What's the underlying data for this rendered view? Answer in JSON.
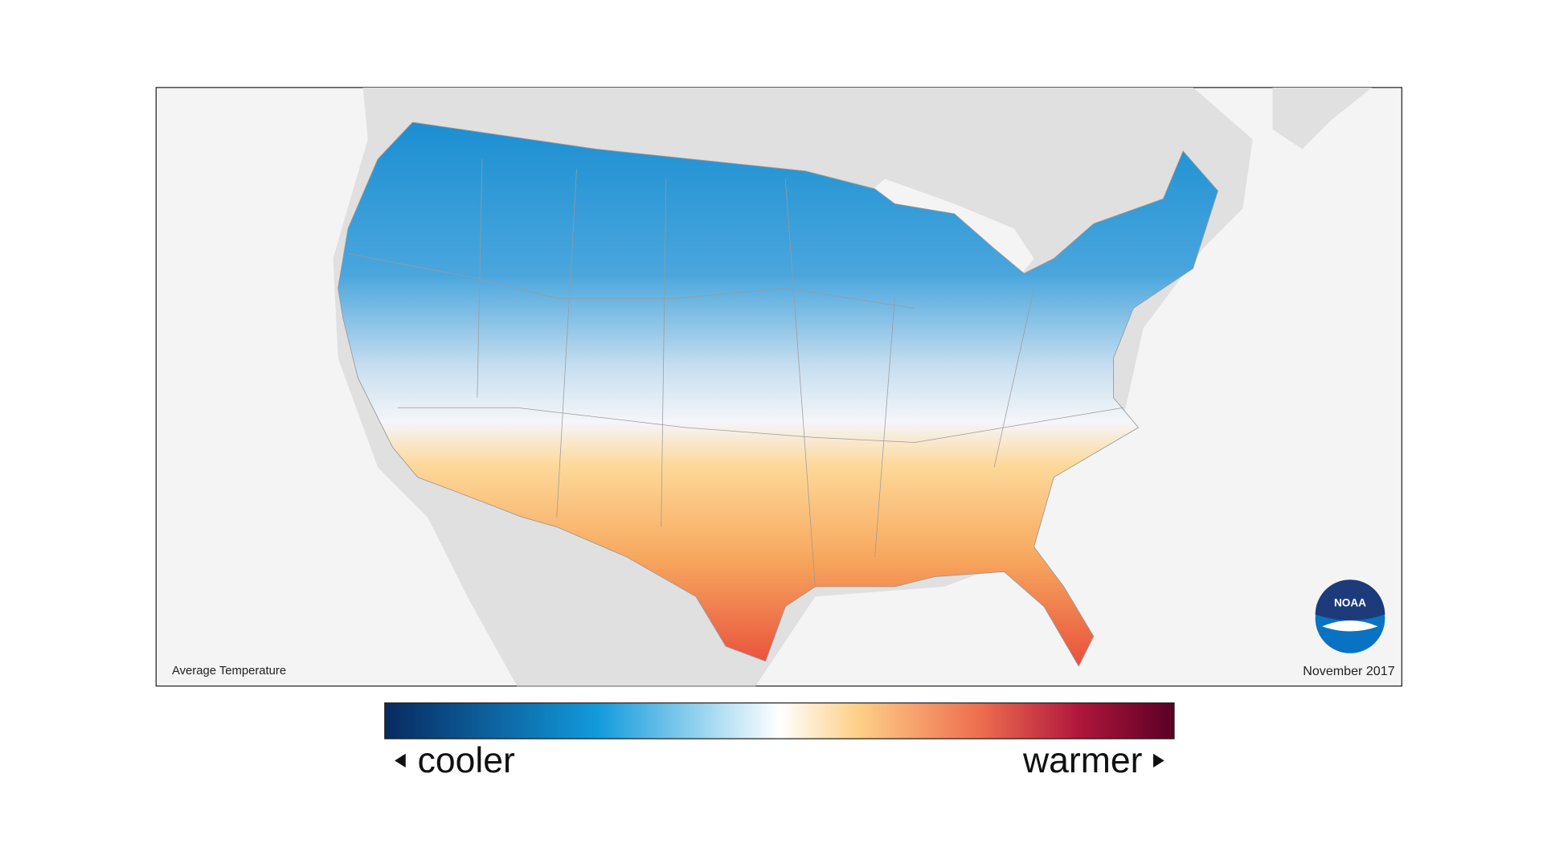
{
  "map": {
    "title": "Average Temperature",
    "date": "November 2017",
    "logo": "NOAA"
  },
  "legend": {
    "low": "cooler",
    "high": "warmer"
  }
}
